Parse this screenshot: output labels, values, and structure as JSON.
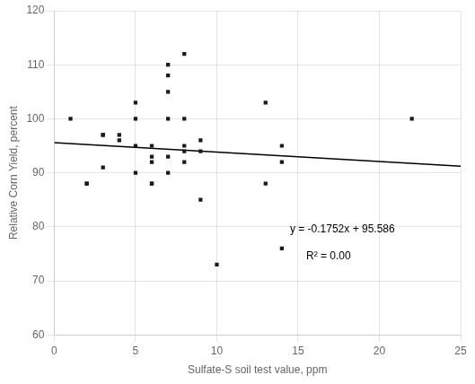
{
  "chart_data": {
    "type": "scatter",
    "xlabel": "Sulfate-S soil test value, ppm",
    "ylabel": "Relative Corn Yield, percent",
    "xlim": [
      0,
      25
    ],
    "ylim": [
      60,
      120
    ],
    "xticks": [
      0,
      5,
      10,
      15,
      20,
      25
    ],
    "yticks": [
      60,
      70,
      80,
      90,
      100,
      110,
      120
    ],
    "grid": true,
    "series": [
      {
        "type": "scatter",
        "marker": "square",
        "color": "#1a1a1a",
        "x": [
          1,
          2,
          2,
          3,
          3,
          3,
          4,
          4,
          5,
          5,
          5,
          5,
          6,
          6,
          6,
          6,
          6,
          7,
          7,
          7,
          7,
          7,
          7,
          8,
          8,
          8,
          8,
          8,
          9,
          9,
          9,
          10,
          13,
          13,
          14,
          14,
          14,
          22
        ],
        "values": [
          100,
          88,
          88,
          97,
          97,
          91,
          97,
          96,
          103,
          100,
          95,
          90,
          95,
          93,
          92,
          88,
          88,
          110,
          108,
          105,
          100,
          93,
          90,
          112,
          100,
          95,
          94,
          92,
          96,
          94,
          85,
          73,
          103,
          88,
          76,
          95,
          92,
          100
        ]
      },
      {
        "type": "line",
        "line_style": "solid",
        "color": "#000000",
        "x": [
          0,
          25
        ],
        "values": [
          95.586,
          91.206
        ]
      }
    ],
    "annotations": [
      {
        "text": "y = -0.1752x + 95.586",
        "x": 14.5,
        "y": 79.5
      },
      {
        "text": "R² = 0.00",
        "x": 15.5,
        "y": 74.5
      }
    ]
  }
}
